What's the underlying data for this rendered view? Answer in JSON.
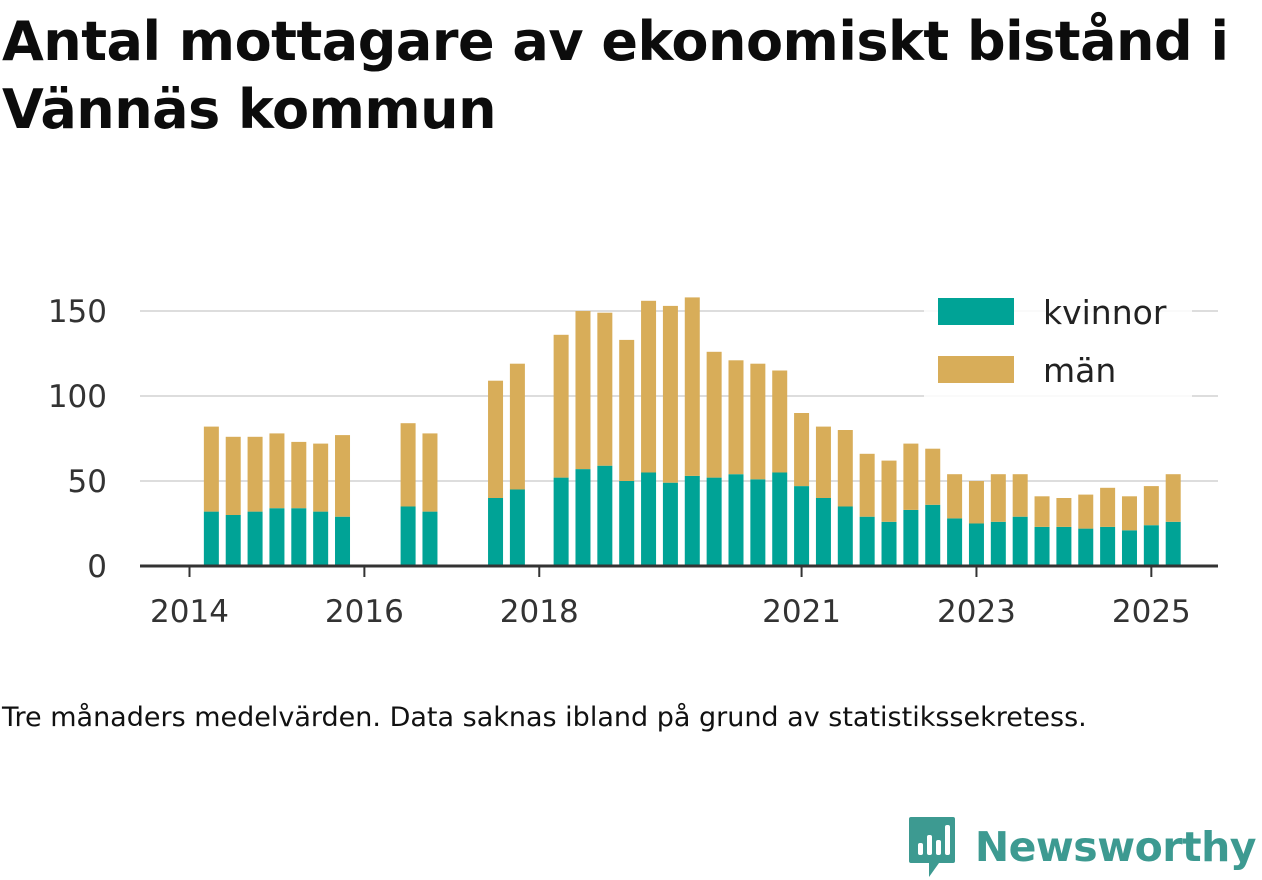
{
  "title": "Antal mottagare av ekonomiskt bistånd i Vännäs kommun",
  "note": "Tre månaders medelvärden. Data saknas ibland på grund av statistikssekretess.",
  "brand": {
    "name": "Newsworthy",
    "icon": "newsworthy-logo-icon"
  },
  "colors": {
    "kvinnor": "#00a396",
    "man": "#d8ad59",
    "grid": "#dddddd",
    "axis": "#333333"
  },
  "chart_data": {
    "type": "bar",
    "stacked": true,
    "grid": true,
    "legend_position": "top-right",
    "ylim": [
      0,
      160
    ],
    "y_ticks": [
      0,
      50,
      100,
      150
    ],
    "x_ticks": [
      {
        "label": "2014",
        "slot": 0
      },
      {
        "label": "2016",
        "slot": 8
      },
      {
        "label": "2018",
        "slot": 16
      },
      {
        "label": "2021",
        "slot": 28
      },
      {
        "label": "2023",
        "slot": 36
      },
      {
        "label": "2025",
        "slot": 44
      }
    ],
    "slots": 47,
    "bars": [
      {
        "slot": 1,
        "kvinnor": 32,
        "man": 50
      },
      {
        "slot": 2,
        "kvinnor": 30,
        "man": 46
      },
      {
        "slot": 3,
        "kvinnor": 32,
        "man": 44
      },
      {
        "slot": 4,
        "kvinnor": 34,
        "man": 44
      },
      {
        "slot": 5,
        "kvinnor": 34,
        "man": 39
      },
      {
        "slot": 6,
        "kvinnor": 32,
        "man": 40
      },
      {
        "slot": 7,
        "kvinnor": 29,
        "man": 48
      },
      {
        "slot": 10,
        "kvinnor": 35,
        "man": 49
      },
      {
        "slot": 11,
        "kvinnor": 32,
        "man": 46
      },
      {
        "slot": 14,
        "kvinnor": 40,
        "man": 69
      },
      {
        "slot": 15,
        "kvinnor": 45,
        "man": 74
      },
      {
        "slot": 17,
        "kvinnor": 52,
        "man": 84
      },
      {
        "slot": 18,
        "kvinnor": 57,
        "man": 93
      },
      {
        "slot": 19,
        "kvinnor": 59,
        "man": 90
      },
      {
        "slot": 20,
        "kvinnor": 50,
        "man": 83
      },
      {
        "slot": 21,
        "kvinnor": 55,
        "man": 101
      },
      {
        "slot": 22,
        "kvinnor": 49,
        "man": 104
      },
      {
        "slot": 23,
        "kvinnor": 53,
        "man": 105
      },
      {
        "slot": 24,
        "kvinnor": 52,
        "man": 74
      },
      {
        "slot": 25,
        "kvinnor": 54,
        "man": 67
      },
      {
        "slot": 26,
        "kvinnor": 51,
        "man": 68
      },
      {
        "slot": 27,
        "kvinnor": 55,
        "man": 60
      },
      {
        "slot": 28,
        "kvinnor": 47,
        "man": 43
      },
      {
        "slot": 29,
        "kvinnor": 40,
        "man": 42
      },
      {
        "slot": 30,
        "kvinnor": 35,
        "man": 45
      },
      {
        "slot": 31,
        "kvinnor": 29,
        "man": 37
      },
      {
        "slot": 32,
        "kvinnor": 26,
        "man": 36
      },
      {
        "slot": 33,
        "kvinnor": 33,
        "man": 39
      },
      {
        "slot": 34,
        "kvinnor": 36,
        "man": 33
      },
      {
        "slot": 35,
        "kvinnor": 28,
        "man": 26
      },
      {
        "slot": 36,
        "kvinnor": 25,
        "man": 25
      },
      {
        "slot": 37,
        "kvinnor": 26,
        "man": 28
      },
      {
        "slot": 38,
        "kvinnor": 29,
        "man": 25
      },
      {
        "slot": 39,
        "kvinnor": 23,
        "man": 18
      },
      {
        "slot": 40,
        "kvinnor": 23,
        "man": 17
      },
      {
        "slot": 41,
        "kvinnor": 22,
        "man": 20
      },
      {
        "slot": 42,
        "kvinnor": 23,
        "man": 23
      },
      {
        "slot": 43,
        "kvinnor": 21,
        "man": 20
      },
      {
        "slot": 44,
        "kvinnor": 24,
        "man": 23
      },
      {
        "slot": 45,
        "kvinnor": 26,
        "man": 28
      }
    ],
    "series": [
      {
        "name": "kvinnor",
        "key": "kvinnor"
      },
      {
        "name": "män",
        "key": "man"
      }
    ]
  }
}
